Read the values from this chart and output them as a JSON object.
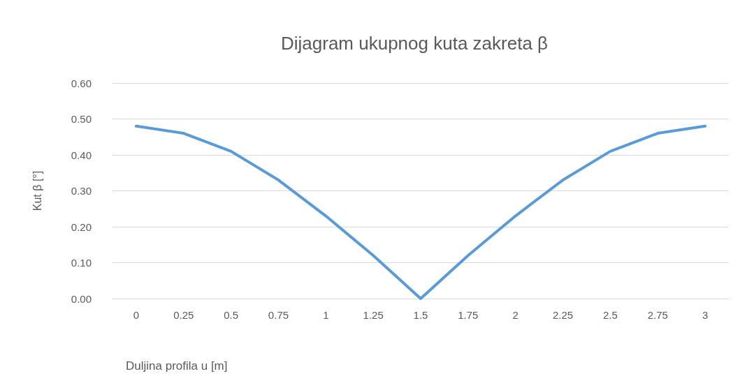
{
  "chart_data": {
    "type": "line",
    "title": "Dijagram ukupnog kuta zakreta β",
    "xlabel": "Duljina profila u [m]",
    "ylabel": "Kut β [°]",
    "categories": [
      "0",
      "0.25",
      "0.5",
      "0.75",
      "1",
      "1.25",
      "1.5",
      "1.75",
      "2",
      "2.25",
      "2.5",
      "2.75",
      "3"
    ],
    "series": [
      {
        "color": "#5b9bd5",
        "values": [
          0.48,
          0.46,
          0.41,
          0.33,
          0.23,
          0.12,
          0,
          0.12,
          0.23,
          0.33,
          0.41,
          0.46,
          0.48
        ]
      }
    ],
    "ylim": [
      0,
      0.6
    ],
    "yticks": [
      {
        "value": 0,
        "label": "0.00"
      },
      {
        "value": 0.1,
        "label": "0.10"
      },
      {
        "value": 0.2,
        "label": "0.20"
      },
      {
        "value": 0.3,
        "label": "0.30"
      },
      {
        "value": 0.4,
        "label": "0.40"
      },
      {
        "value": 0.5,
        "label": "0.50"
      },
      {
        "value": 0.6,
        "label": "0.60"
      }
    ],
    "grid": "y",
    "marker": "none",
    "line_style": "solid"
  }
}
